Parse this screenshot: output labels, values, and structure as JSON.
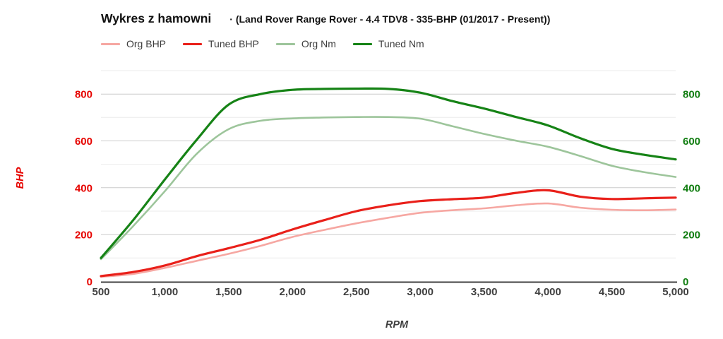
{
  "title": "Wykres z hamowni",
  "subtitle": "· (Land Rover Range Rover - 4.4 TDV8 - 335-BHP (01/2017 - Present))",
  "chart_data": {
    "type": "line",
    "title": "Wykres z hamowni",
    "xlabel": "RPM",
    "ylabel_left": "BHP",
    "ylim": [
      0,
      900
    ],
    "grid": "horizontal-only",
    "legend_position": "top-left",
    "x_ticks": [
      500,
      1000,
      1500,
      2000,
      2500,
      3000,
      3500,
      4000,
      4500,
      5000
    ],
    "x_tick_labels": [
      "500",
      "1,000",
      "1,500",
      "2,000",
      "2,500",
      "3,000",
      "3,500",
      "4,000",
      "4,500",
      "5,000"
    ],
    "y_ticks": [
      0,
      200,
      400,
      600,
      800
    ],
    "y_tick_labels": [
      "0",
      "200",
      "400",
      "600",
      "800"
    ],
    "x": [
      500,
      750,
      1000,
      1250,
      1500,
      1750,
      2000,
      2250,
      2500,
      2750,
      3000,
      3250,
      3500,
      3750,
      4000,
      4250,
      4500,
      4750,
      5000
    ],
    "series": [
      {
        "name": "Org BHP",
        "color": "#f6a7a2",
        "width": 2.6,
        "values": [
          20,
          32,
          58,
          88,
          118,
          152,
          190,
          220,
          248,
          272,
          293,
          304,
          312,
          325,
          333,
          315,
          306,
          304,
          307
        ]
      },
      {
        "name": "Tuned BHP",
        "color": "#e9201a",
        "width": 3.2,
        "values": [
          23,
          40,
          68,
          108,
          142,
          178,
          222,
          262,
          300,
          325,
          343,
          351,
          358,
          378,
          389,
          362,
          352,
          355,
          358
        ]
      },
      {
        "name": "Org Nm",
        "color": "#9dc59b",
        "width": 2.6,
        "values": [
          95,
          235,
          385,
          545,
          650,
          686,
          696,
          700,
          702,
          702,
          695,
          663,
          630,
          601,
          575,
          536,
          494,
          467,
          446
        ]
      },
      {
        "name": "Tuned Nm",
        "color": "#168316",
        "width": 3.2,
        "values": [
          100,
          260,
          435,
          605,
          755,
          800,
          818,
          822,
          823,
          822,
          806,
          770,
          738,
          702,
          666,
          612,
          566,
          541,
          521
        ]
      }
    ],
    "axis_colors": {
      "left_ticks": "#e60400",
      "right_ticks": "#107d10",
      "x_ticks": "#3f3f3f"
    },
    "gridline_colors": {
      "major": "#cccccc",
      "minor": "#ebebeb",
      "baseline": "#424242"
    }
  }
}
